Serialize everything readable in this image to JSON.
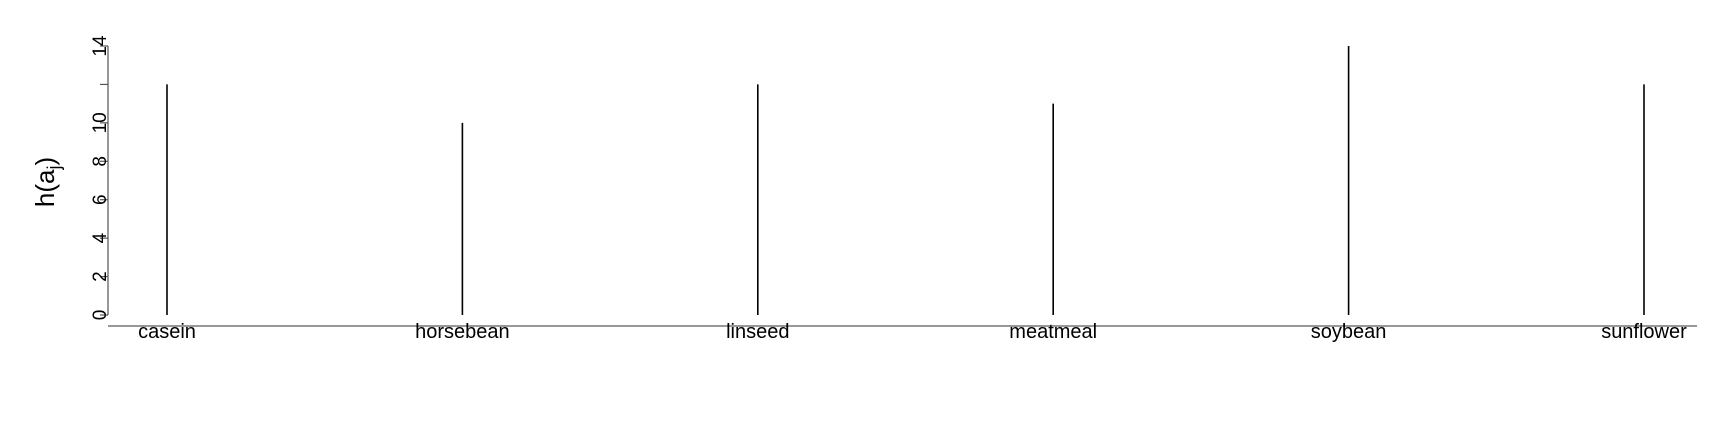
{
  "chart_data": {
    "type": "bar",
    "style": "spike",
    "categories": [
      "casein",
      "horsebean",
      "linseed",
      "meatmeal",
      "soybean",
      "sunflower"
    ],
    "values": [
      12,
      10,
      12,
      11,
      14,
      12
    ],
    "ylabel_base": "h(a",
    "ylabel_sub": "j",
    "ylabel_close": ")",
    "ylim": [
      0,
      14
    ],
    "yticks": [
      0,
      2,
      4,
      6,
      8,
      10,
      12,
      14
    ],
    "ytick_labels": [
      "0",
      "2",
      "4",
      "6",
      "8",
      "10",
      "",
      "14"
    ],
    "grid": false,
    "colors": {
      "line": "#000000",
      "axis": "#555555"
    }
  }
}
